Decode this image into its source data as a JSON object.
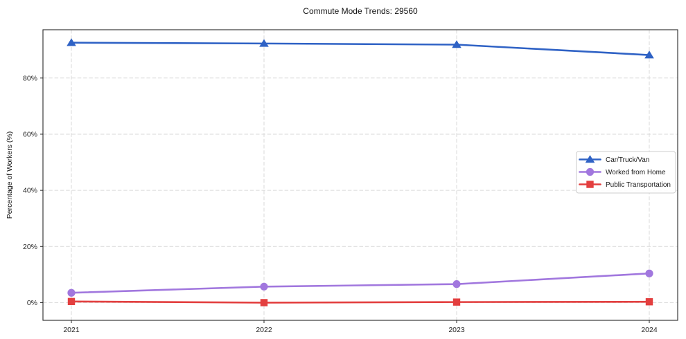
{
  "chart_data": {
    "type": "line",
    "title": "Commute Mode Trends: 29560",
    "xlabel": "",
    "ylabel": "Percentage of Workers (%)",
    "x": [
      2021,
      2022,
      2023,
      2024
    ],
    "xtick_labels": [
      "2021",
      "2022",
      "2023",
      "2024"
    ],
    "yticks": [
      0,
      20,
      40,
      60,
      80
    ],
    "ytick_labels": [
      "0%",
      "20%",
      "40%",
      "60%",
      "80%"
    ],
    "ylim": [
      -6.3,
      97.2
    ],
    "grid": true,
    "grid_style": "dashed",
    "legend_position": "center-right",
    "series": [
      {
        "name": "Car/Truck/Van",
        "values": [
          92.6,
          92.3,
          91.9,
          88.2
        ],
        "color": "#2f62c5",
        "marker": "triangle"
      },
      {
        "name": "Worked from Home",
        "values": [
          3.5,
          5.7,
          6.6,
          10.4
        ],
        "color": "#a177de",
        "marker": "circle"
      },
      {
        "name": "Public Transportation",
        "values": [
          0.4,
          0.0,
          0.2,
          0.3
        ],
        "color": "#e33f3f",
        "marker": "square"
      }
    ],
    "colors": {
      "grid": "#d9d9d9",
      "spine": "#262626",
      "tick_label": "#262626",
      "legend_border": "#cccccc",
      "legend_bg": "#ffffff"
    }
  }
}
